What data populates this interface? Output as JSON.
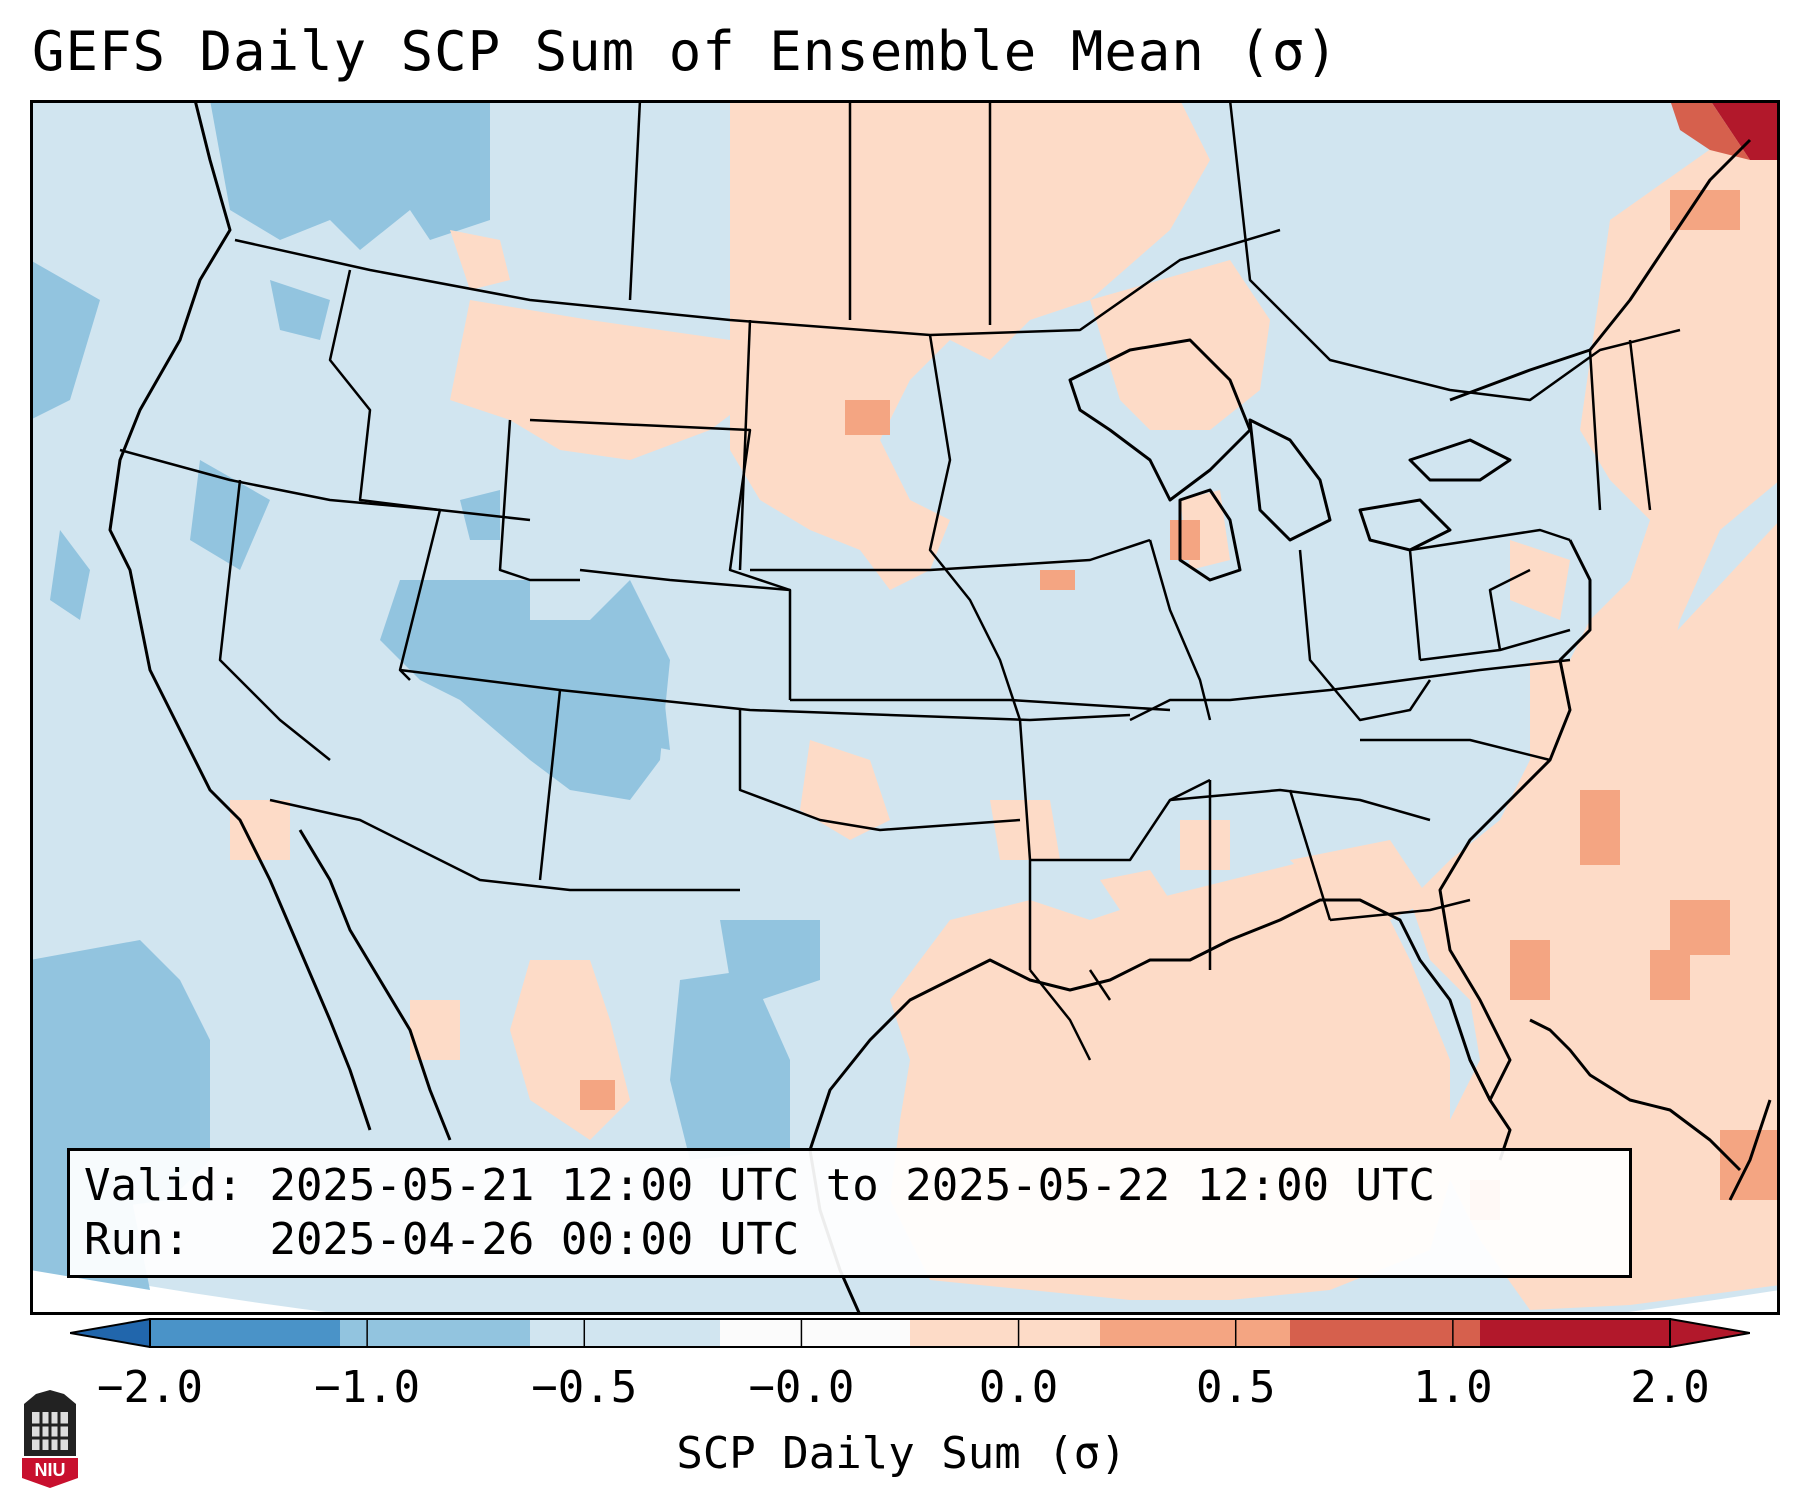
{
  "title": "GEFS Daily SCP Sum of Ensemble Mean (σ)",
  "info": {
    "valid_label": "Valid:",
    "valid_value": "2025-05-21 12:00 UTC to 2025-05-22 12:00 UTC",
    "run_label": "Run:",
    "run_value": "2025-04-26 00:00 UTC"
  },
  "colorbar": {
    "label": "SCP Daily Sum (σ)",
    "ticks": [
      "−2.0",
      "−1.0",
      "−0.5",
      "−0.0",
      "0.0",
      "0.5",
      "1.0",
      "2.0"
    ],
    "colors": [
      "#4a93c8",
      "#92c4df",
      "#d1e5f0",
      "#fbfbfb",
      "#fddbc7",
      "#f4a582",
      "#d6604d",
      "#b2182b"
    ]
  },
  "logo": {
    "text": "NIU",
    "color": "#c8102e"
  },
  "colors": {
    "land_ocean_base": "#d1e5f0",
    "positive_light": "#fddbc7",
    "positive_mid": "#f4a582",
    "negative_mid": "#92c4df",
    "strong_positive": "#b2182b"
  }
}
